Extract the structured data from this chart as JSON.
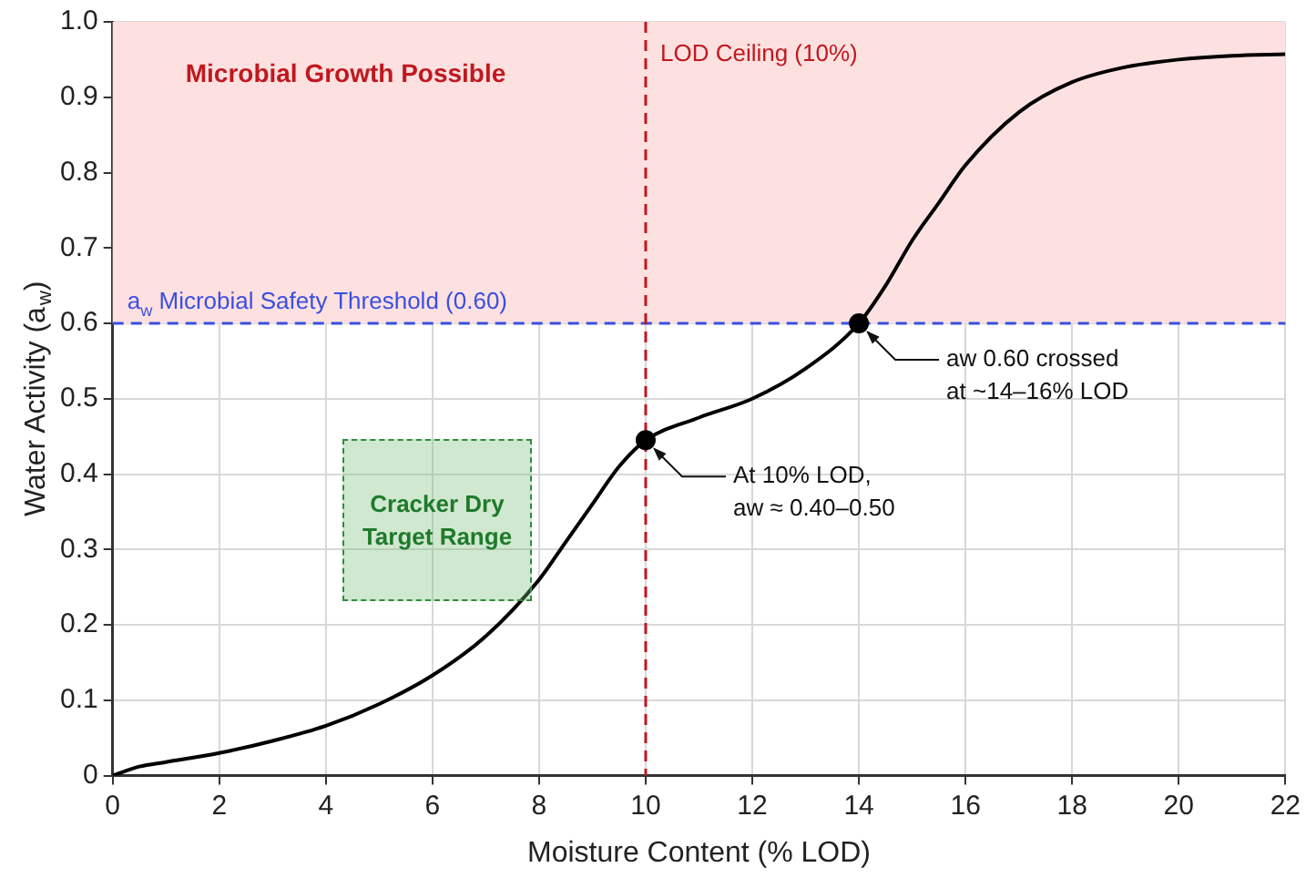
{
  "chart_data": {
    "type": "line",
    "xlabel": "Moisture Content (% LOD)",
    "ylabel": "Water Activity (a$_{w}$)",
    "xlim": [
      0,
      22
    ],
    "xticks": [
      0,
      2,
      4,
      6,
      8,
      10,
      12,
      14,
      16,
      18,
      20,
      22
    ],
    "ylim": [
      0,
      1
    ],
    "yticks": [
      0,
      0.1,
      0.2,
      0.3,
      0.4,
      0.5,
      0.6,
      0.7,
      0.8,
      0.9,
      {
        "value": 1,
        "label": "1.0"
      }
    ],
    "grid": true,
    "legend": false,
    "line_style": "solid",
    "series": [
      {
        "color": "#000000",
        "marker": "none",
        "x": [
          0,
          0.5,
          1,
          2,
          3,
          4,
          5,
          6,
          7,
          8,
          8.5,
          9,
          9.5,
          10,
          11,
          12,
          13,
          14,
          14.5,
          15,
          15.5,
          16,
          17,
          18,
          19,
          20,
          21,
          22
        ],
        "values": [
          0,
          0.012,
          0.018,
          0.03,
          0.046,
          0.066,
          0.095,
          0.133,
          0.185,
          0.26,
          0.31,
          0.36,
          0.41,
          0.445,
          0.475,
          0.5,
          0.54,
          0.6,
          0.65,
          0.71,
          0.76,
          0.81,
          0.88,
          0.92,
          0.94,
          0.95,
          0.955,
          0.957
        ]
      },
      {
        "type": "scatter",
        "color": "#000000",
        "marker": "circle",
        "x": [
          10,
          14
        ],
        "values": [
          0.445,
          0.6
        ]
      }
    ],
    "bands": [
      {
        "axis": "y",
        "from": 0.6,
        "to": 1.0,
        "label": "Microbial Growth Possible",
        "color": "#fde0e0"
      }
    ],
    "ref_lines": [
      {
        "axis": "y",
        "value": 0.6,
        "label": "a$_{w}$ Microbial Safety Threshold (0.60)",
        "color": "#3b4fe0",
        "line_style": "dashed"
      },
      {
        "axis": "x",
        "value": 10,
        "label": "LOD Ceiling (10%)",
        "color": "#c0181e",
        "line_style": "dashed"
      }
    ],
    "annotations": [
      "Cracker Dry\nTarget Range",
      {
        "text": "At 10% LOD,\naw ≈ 0.40–0.50",
        "x": 10,
        "y": 0.445
      },
      {
        "text": "aw 0.60 crossed\nat ~14–16% LOD",
        "x": 14,
        "y": 0.6
      }
    ]
  }
}
